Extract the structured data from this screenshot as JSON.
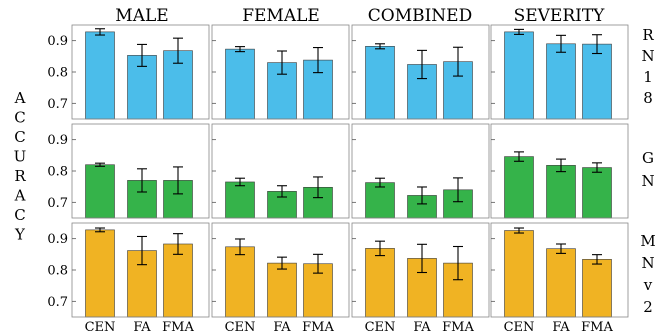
{
  "ylabel": "ACCURACY",
  "col_titles": [
    "MALE",
    "FEMALE",
    "COMBINED",
    "SEVERITY"
  ],
  "row_labels": [
    "RN18",
    "GN",
    "MNv2"
  ],
  "categories": [
    "CEN",
    "FA",
    "FMA"
  ],
  "yticks": [
    "0.7",
    "0.8",
    "0.9"
  ],
  "colors": {
    "RN18": "#4bbdea",
    "GN": "#35b34a",
    "MNv2": "#f0b323",
    "axis": "#888888",
    "errorbar": "#000000"
  },
  "chart_data": {
    "type": "bar",
    "layout": "grid 3 rows x 4 columns",
    "rows": [
      "RN18",
      "GN",
      "MNv2"
    ],
    "columns": [
      "MALE",
      "FEMALE",
      "COMBINED",
      "SEVERITY"
    ],
    "categories": [
      "CEN",
      "FA",
      "FMA"
    ],
    "ylabel": "ACCURACY",
    "ylim": [
      0.65,
      0.95
    ],
    "yticks": [
      0.7,
      0.8,
      0.9
    ],
    "grid": false,
    "error_bars": true,
    "panels": [
      [
        {
          "values": [
            0.928,
            0.853,
            0.868
          ],
          "errors": [
            0.01,
            0.035,
            0.04
          ]
        },
        {
          "values": [
            0.873,
            0.83,
            0.838
          ],
          "errors": [
            0.008,
            0.037,
            0.04
          ]
        },
        {
          "values": [
            0.882,
            0.824,
            0.833
          ],
          "errors": [
            0.008,
            0.045,
            0.046
          ]
        },
        {
          "values": [
            0.928,
            0.89,
            0.889
          ],
          "errors": [
            0.008,
            0.027,
            0.03
          ]
        }
      ],
      [
        {
          "values": [
            0.82,
            0.77,
            0.77
          ],
          "errors": [
            0.005,
            0.037,
            0.043
          ]
        },
        {
          "values": [
            0.765,
            0.735,
            0.748
          ],
          "errors": [
            0.012,
            0.018,
            0.033
          ]
        },
        {
          "values": [
            0.763,
            0.722,
            0.74
          ],
          "errors": [
            0.014,
            0.027,
            0.038
          ]
        },
        {
          "values": [
            0.846,
            0.818,
            0.811
          ],
          "errors": [
            0.015,
            0.02,
            0.015
          ]
        }
      ],
      [
        {
          "values": [
            0.928,
            0.862,
            0.883
          ],
          "errors": [
            0.006,
            0.045,
            0.033
          ]
        },
        {
          "values": [
            0.874,
            0.822,
            0.82
          ],
          "errors": [
            0.025,
            0.019,
            0.03
          ]
        },
        {
          "values": [
            0.869,
            0.837,
            0.822
          ],
          "errors": [
            0.023,
            0.045,
            0.053
          ]
        },
        {
          "values": [
            0.926,
            0.868,
            0.834
          ],
          "errors": [
            0.008,
            0.015,
            0.015
          ]
        }
      ]
    ]
  }
}
